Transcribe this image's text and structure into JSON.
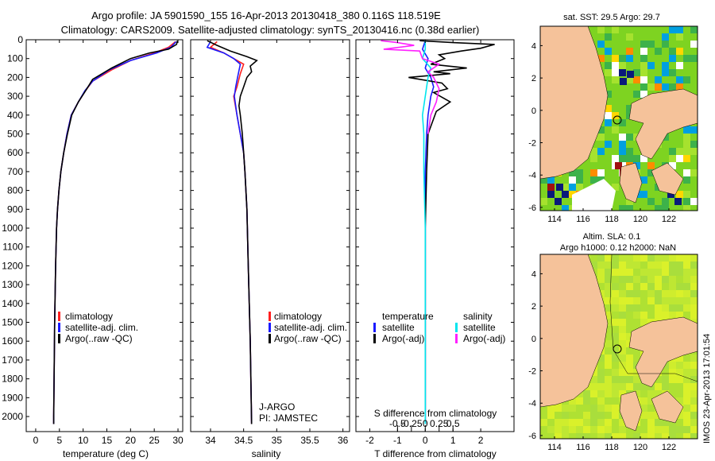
{
  "header": {
    "title_line1": "Argo profile: JA 5901590_155 16-Apr-2013 20130418_380 0.116S 118.519E",
    "title_line2": "Climatology: CARS2009. Satellite-adjusted climatology: synTS_20130416.nc (0.38d earlier)"
  },
  "side_label": "IMOS 23-Apr-2013 17:01:54",
  "colors": {
    "climatology": "#ff2020",
    "satellite_adj": "#1a1aff",
    "argo": "#000000",
    "sat_salinity": "#00e5ee",
    "argo_salinity": "#ff20ff",
    "land": "#f5c29a"
  },
  "chart_data": [
    {
      "type": "line",
      "id": "temperature",
      "xlabel": "temperature (deg C)",
      "xlim": [
        -2,
        31
      ],
      "ylim": [
        2080,
        0
      ],
      "xticks": [
        0,
        5,
        10,
        15,
        20,
        25,
        30
      ],
      "yticks": [
        0,
        100,
        200,
        300,
        400,
        500,
        600,
        700,
        800,
        900,
        1000,
        1100,
        1200,
        1300,
        1400,
        1500,
        1600,
        1700,
        1800,
        1900,
        2000
      ],
      "legend": [
        "climatology",
        "satellite-adj. clim.",
        "Argo(..raw -QC)"
      ],
      "series": [
        {
          "name": "climatology",
          "color": "#ff2020",
          "points": [
            [
              29.5,
              10
            ],
            [
              28,
              40
            ],
            [
              25,
              70
            ],
            [
              20,
              110
            ],
            [
              16,
              160
            ],
            [
              12,
              220
            ],
            [
              10.5,
              270
            ],
            [
              9,
              330
            ],
            [
              7.5,
              400
            ],
            [
              6.6,
              500
            ],
            [
              5.9,
              600
            ],
            [
              5.3,
              700
            ],
            [
              4.9,
              800
            ],
            [
              4.6,
              900
            ],
            [
              4.4,
              1000
            ],
            [
              4.2,
              1200
            ],
            [
              4,
              1500
            ],
            [
              3.8,
              2000
            ],
            [
              3.8,
              2040
            ]
          ]
        },
        {
          "name": "satellite-adj. clim.",
          "color": "#1a1aff",
          "points": [
            [
              29.6,
              10
            ],
            [
              28.5,
              40
            ],
            [
              25.5,
              70
            ],
            [
              20,
              110
            ],
            [
              15.5,
              160
            ],
            [
              12,
              220
            ],
            [
              10.4,
              270
            ],
            [
              9,
              330
            ],
            [
              7.5,
              400
            ],
            [
              6.6,
              500
            ],
            [
              5.9,
              600
            ],
            [
              5.3,
              700
            ],
            [
              4.9,
              800
            ],
            [
              4.6,
              900
            ],
            [
              4.4,
              1000
            ],
            [
              4.2,
              1200
            ],
            [
              4,
              1500
            ],
            [
              3.8,
              2000
            ],
            [
              3.8,
              2040
            ]
          ]
        },
        {
          "name": "Argo(..raw -QC)",
          "color": "#000000",
          "points": [
            [
              29.9,
              5
            ],
            [
              29.7,
              25
            ],
            [
              28,
              50
            ],
            [
              24,
              70
            ],
            [
              20,
              100
            ],
            [
              16,
              150
            ],
            [
              12,
              210
            ],
            [
              10.8,
              260
            ],
            [
              9,
              330
            ],
            [
              7.6,
              400
            ],
            [
              6.7,
              500
            ],
            [
              5.9,
              600
            ],
            [
              5.3,
              700
            ],
            [
              4.9,
              800
            ],
            [
              4.6,
              900
            ],
            [
              4.4,
              1000
            ],
            [
              4.2,
              1200
            ],
            [
              4,
              1500
            ],
            [
              3.8,
              2000
            ],
            [
              3.8,
              2040
            ]
          ]
        }
      ]
    },
    {
      "type": "line",
      "id": "salinity",
      "xlabel": "salinity",
      "xlim": [
        33.7,
        36.1
      ],
      "ylim": [
        2080,
        0
      ],
      "xticks": [
        34,
        34.5,
        35,
        35.5,
        36
      ],
      "xticklabels": [
        "34",
        "34.5",
        "35",
        "35.5",
        "36"
      ],
      "legend": [
        "climatology",
        "satellite-adj. clim.",
        "Argo(..raw -QC)"
      ],
      "annotation": [
        "J-ARGO",
        "PI: JAMSTEC"
      ],
      "series": [
        {
          "name": "climatology",
          "color": "#ff2020",
          "points": [
            [
              34.1,
              10
            ],
            [
              34.0,
              40
            ],
            [
              34.2,
              70
            ],
            [
              34.35,
              100
            ],
            [
              34.5,
              130
            ],
            [
              34.45,
              180
            ],
            [
              34.4,
              250
            ],
            [
              34.35,
              300
            ],
            [
              34.4,
              400
            ],
            [
              34.45,
              500
            ],
            [
              34.5,
              600
            ],
            [
              34.52,
              700
            ],
            [
              34.55,
              900
            ],
            [
              34.57,
              1200
            ],
            [
              34.6,
              1600
            ],
            [
              34.62,
              2040
            ]
          ]
        },
        {
          "name": "satellite-adj. clim.",
          "color": "#1a1aff",
          "points": [
            [
              34.0,
              10
            ],
            [
              33.95,
              40
            ],
            [
              34.2,
              70
            ],
            [
              34.35,
              100
            ],
            [
              34.45,
              130
            ],
            [
              34.42,
              180
            ],
            [
              34.38,
              250
            ],
            [
              34.36,
              300
            ],
            [
              34.4,
              400
            ],
            [
              34.45,
              500
            ],
            [
              34.5,
              600
            ],
            [
              34.52,
              700
            ],
            [
              34.55,
              900
            ],
            [
              34.57,
              1200
            ],
            [
              34.6,
              1600
            ],
            [
              34.62,
              2040
            ]
          ]
        },
        {
          "name": "Argo(..raw -QC)",
          "color": "#000000",
          "points": [
            [
              33.95,
              5
            ],
            [
              34.1,
              30
            ],
            [
              34.3,
              60
            ],
            [
              34.55,
              90
            ],
            [
              34.7,
              110
            ],
            [
              34.6,
              140
            ],
            [
              34.62,
              170
            ],
            [
              34.55,
              200
            ],
            [
              34.5,
              250
            ],
            [
              34.45,
              300
            ],
            [
              34.43,
              350
            ],
            [
              34.45,
              400
            ],
            [
              34.48,
              500
            ],
            [
              34.5,
              600
            ],
            [
              34.52,
              700
            ],
            [
              34.55,
              900
            ],
            [
              34.57,
              1200
            ],
            [
              34.6,
              1600
            ],
            [
              34.62,
              2040
            ]
          ]
        }
      ]
    },
    {
      "type": "line",
      "id": "difference",
      "xlabel": "T difference from climatology",
      "xlabel_top": "S difference from climatology",
      "xlim": [
        -2.5,
        3.2
      ],
      "ylim": [
        2080,
        0
      ],
      "xticks": [
        -2,
        -1,
        0,
        1,
        2
      ],
      "xticklabels": [
        "-2",
        "-1",
        "0",
        "1",
        "2"
      ],
      "sticks": [
        -1,
        -0.5,
        0,
        0.5,
        1
      ],
      "sticklabels": [
        "-0.5",
        "-0.25",
        "0",
        "0.25",
        "0.5"
      ],
      "legend_left_title": "temperature",
      "legend_right_title": "salinity",
      "legend": [
        "satellite",
        "Argo(-adj)",
        "satellite",
        "Argo(-adj)"
      ],
      "series": [
        {
          "name": "temperature satellite",
          "color": "#1a1aff",
          "points": [
            [
              0,
              5
            ],
            [
              -0.1,
              50
            ],
            [
              0.1,
              100
            ],
            [
              0,
              150
            ],
            [
              0.2,
              200
            ],
            [
              0.3,
              250
            ],
            [
              0.2,
              300
            ],
            [
              0.1,
              400
            ],
            [
              0.05,
              500
            ],
            [
              0,
              700
            ],
            [
              0,
              1000
            ],
            [
              0,
              1500
            ],
            [
              0,
              2040
            ]
          ]
        },
        {
          "name": "temperature Argo(-adj)",
          "color": "#000000",
          "points": [
            [
              -0.2,
              5
            ],
            [
              1,
              15
            ],
            [
              2.5,
              25
            ],
            [
              2,
              45
            ],
            [
              1.3,
              60
            ],
            [
              0.5,
              80
            ],
            [
              0.7,
              100
            ],
            [
              0.2,
              130
            ],
            [
              1.5,
              150
            ],
            [
              0.3,
              170
            ],
            [
              0.9,
              180
            ],
            [
              -0.6,
              200
            ],
            [
              0.6,
              230
            ],
            [
              0.8,
              260
            ],
            [
              0.3,
              280
            ],
            [
              0.9,
              330
            ],
            [
              0.4,
              380
            ],
            [
              0.1,
              500
            ],
            [
              0.05,
              700
            ],
            [
              0,
              1000
            ],
            [
              0,
              1500
            ],
            [
              0,
              2040
            ]
          ]
        },
        {
          "name": "salinity satellite",
          "color": "#00e5ee",
          "points": [
            [
              0,
              5
            ],
            [
              0,
              50
            ],
            [
              -0.1,
              100
            ],
            [
              0.2,
              150
            ],
            [
              0.1,
              200
            ],
            [
              0,
              300
            ],
            [
              -0.1,
              400
            ],
            [
              -0.05,
              500
            ],
            [
              -0.05,
              700
            ],
            [
              0,
              1000
            ],
            [
              0,
              1500
            ],
            [
              0,
              2040
            ]
          ]
        },
        {
          "name": "salinity Argo(-adj)",
          "color": "#ff20ff",
          "points": [
            [
              -1.6,
              5
            ],
            [
              -1,
              15
            ],
            [
              -0.4,
              30
            ],
            [
              -1.5,
              50
            ],
            [
              -0.2,
              60
            ],
            [
              -0.1,
              100
            ],
            [
              0.5,
              130
            ],
            [
              0.1,
              170
            ],
            [
              0.3,
              200
            ],
            [
              0.5,
              260
            ],
            [
              0.4,
              330
            ],
            [
              0.2,
              400
            ],
            [
              0.1,
              500
            ]
          ]
        }
      ]
    },
    {
      "type": "heatmap",
      "id": "sst-map",
      "title": "sat. SST: 29.5 Argo: 29.7",
      "xticks": [
        114,
        116,
        118,
        120,
        122
      ],
      "yticks": [
        4,
        2,
        0,
        -2,
        -4,
        -6
      ],
      "xlim": [
        113,
        124
      ],
      "ylim": [
        -6.2,
        5.2
      ],
      "marker": [
        118.519,
        -0.116
      ]
    },
    {
      "type": "heatmap",
      "id": "sla-map",
      "title_line1": "Altim. SLA: 0.1",
      "title_line2": "Argo h1000: 0.12 h2000: NaN",
      "xticks": [
        114,
        116,
        118,
        120,
        122
      ],
      "yticks": [
        4,
        2,
        0,
        -2,
        -4,
        -6
      ],
      "xlim": [
        113,
        124
      ],
      "ylim": [
        -6.2,
        5.2
      ],
      "marker": [
        118.519,
        -0.116
      ]
    }
  ]
}
